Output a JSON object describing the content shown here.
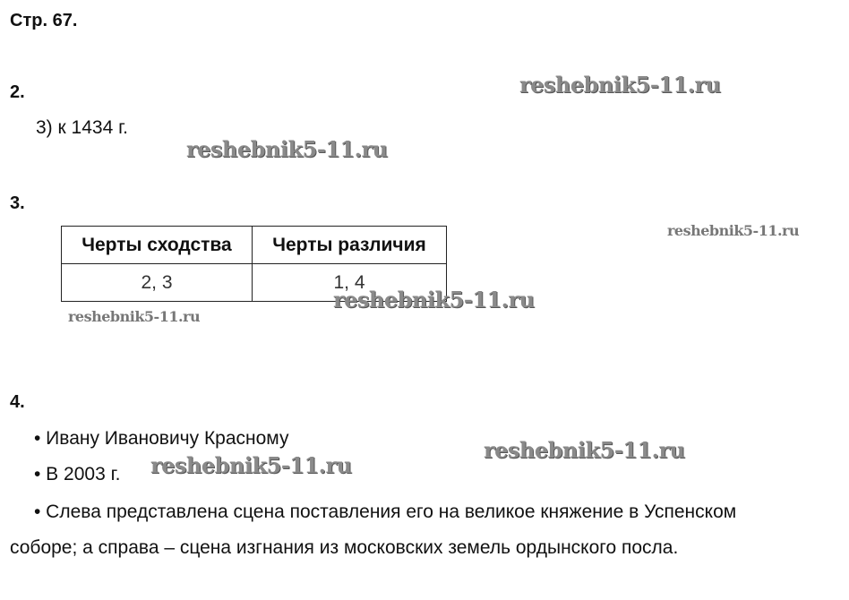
{
  "page_title": "Стр. 67.",
  "task2": {
    "number": "2.",
    "answer": "3) к 1434 г."
  },
  "task3": {
    "number": "3.",
    "table": {
      "headers": [
        "Черты сходства",
        "Черты различия"
      ],
      "rows": [
        [
          "2, 3",
          "1, 4"
        ]
      ]
    }
  },
  "task4": {
    "number": "4.",
    "items": [
      "• Ивану Ивановичу Красному",
      "• В 2003 г.",
      "• Слева представлена сцена поставления его на великое княжение в Успенском",
      "соборе; а справа – сцена изгнания из московских земель ордынского посла."
    ]
  },
  "watermark": "reshebnik5-11.ru"
}
